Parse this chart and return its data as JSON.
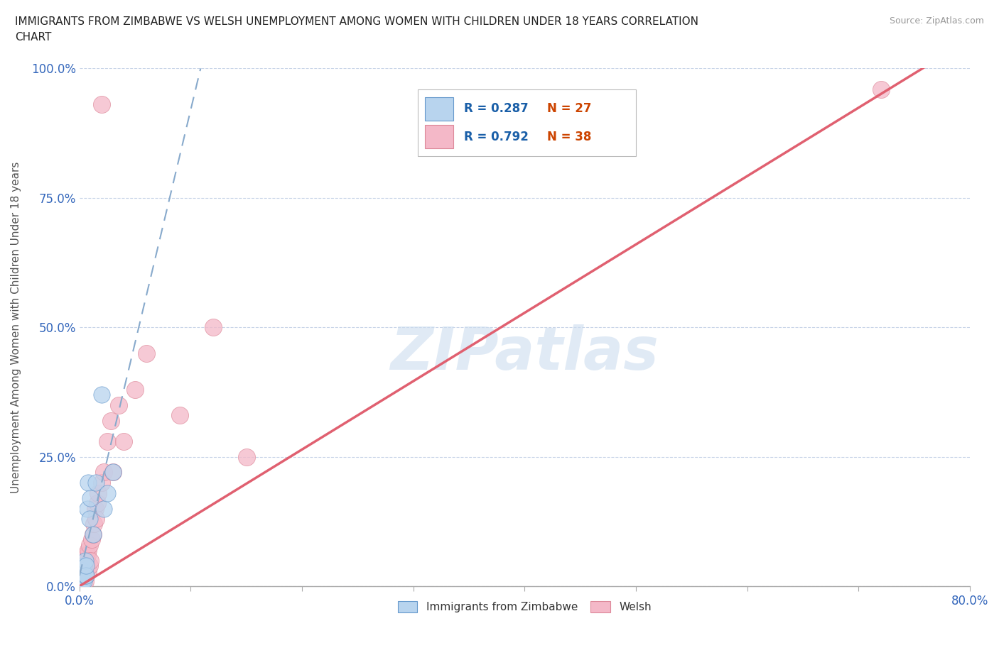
{
  "title": "IMMIGRANTS FROM ZIMBABWE VS WELSH UNEMPLOYMENT AMONG WOMEN WITH CHILDREN UNDER 18 YEARS CORRELATION\nCHART",
  "source": "Source: ZipAtlas.com",
  "ylabel": "Unemployment Among Women with Children Under 18 years",
  "xlim": [
    0,
    0.8
  ],
  "ylim": [
    0,
    1.0
  ],
  "xticks": [
    0.0,
    0.1,
    0.2,
    0.3,
    0.4,
    0.5,
    0.6,
    0.7,
    0.8
  ],
  "xtick_labels": [
    "0.0%",
    "",
    "",
    "",
    "",
    "",
    "",
    "",
    "80.0%"
  ],
  "yticks": [
    0.0,
    0.25,
    0.5,
    0.75,
    1.0
  ],
  "ytick_labels": [
    "0.0%",
    "25.0%",
    "50.0%",
    "75.0%",
    "100.0%"
  ],
  "watermark": "ZIPatlas",
  "series1_label": "Immigrants from Zimbabwe",
  "series1_R": 0.287,
  "series1_N": 27,
  "series1_color": "#b8d4ee",
  "series1_edge": "#6699cc",
  "series2_label": "Welsh",
  "series2_R": 0.792,
  "series2_N": 38,
  "series2_color": "#f4b8c8",
  "series2_edge": "#dd8899",
  "series1_x": [
    0.0005,
    0.001,
    0.001,
    0.001,
    0.002,
    0.002,
    0.002,
    0.002,
    0.003,
    0.003,
    0.003,
    0.004,
    0.004,
    0.005,
    0.005,
    0.006,
    0.006,
    0.007,
    0.008,
    0.009,
    0.01,
    0.012,
    0.015,
    0.02,
    0.022,
    0.025,
    0.03
  ],
  "series1_y": [
    0.005,
    0.008,
    0.01,
    0.015,
    0.005,
    0.01,
    0.02,
    0.03,
    0.01,
    0.02,
    0.03,
    0.01,
    0.04,
    0.02,
    0.05,
    0.02,
    0.04,
    0.15,
    0.2,
    0.13,
    0.17,
    0.1,
    0.2,
    0.37,
    0.15,
    0.18,
    0.22
  ],
  "series2_x": [
    0.001,
    0.001,
    0.002,
    0.002,
    0.003,
    0.003,
    0.004,
    0.004,
    0.005,
    0.005,
    0.005,
    0.006,
    0.006,
    0.007,
    0.008,
    0.008,
    0.009,
    0.009,
    0.01,
    0.011,
    0.012,
    0.013,
    0.014,
    0.015,
    0.016,
    0.017,
    0.02,
    0.022,
    0.025,
    0.028,
    0.03,
    0.035,
    0.04,
    0.05,
    0.06,
    0.09,
    0.12,
    0.15
  ],
  "series2_y": [
    0.005,
    0.02,
    0.01,
    0.03,
    0.01,
    0.04,
    0.02,
    0.05,
    0.01,
    0.03,
    0.06,
    0.02,
    0.05,
    0.06,
    0.03,
    0.07,
    0.04,
    0.08,
    0.05,
    0.09,
    0.1,
    0.12,
    0.15,
    0.13,
    0.16,
    0.18,
    0.2,
    0.22,
    0.28,
    0.32,
    0.22,
    0.35,
    0.28,
    0.38,
    0.45,
    0.33,
    0.5,
    0.25
  ],
  "series2_outlier_x": [
    0.72
  ],
  "series2_outlier_y": [
    0.96
  ],
  "series2_outlier2_x": [
    0.02
  ],
  "series2_outlier2_y": [
    0.93
  ],
  "legend_R_color": "#1a5fa8",
  "legend_N_color": "#cc4400",
  "bg_color": "#ffffff",
  "grid_color": "#c8d4e8",
  "reg1_color": "#88aacc",
  "reg2_color": "#e06070",
  "reg1_slope": 9.0,
  "reg1_intercept": 0.02,
  "reg2_slope": 1.32,
  "reg2_intercept": 0.0
}
